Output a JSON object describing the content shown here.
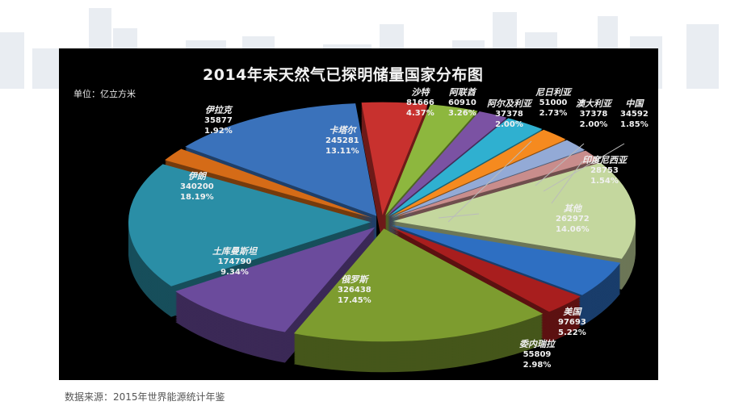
{
  "source_note": "数据来源：2015年世界能源统计年鉴",
  "chart_data": {
    "type": "pie",
    "title": "2014年末天然气已探明储量国家分布图",
    "unit": "单位：亿立方米",
    "style": "3d-exploded",
    "slices": [
      {
        "name": "沙特",
        "value": 81666,
        "percent": "4.37%",
        "color": "#c8312e"
      },
      {
        "name": "阿联酋",
        "value": 60910,
        "percent": "3.26%",
        "color": "#8db73e"
      },
      {
        "name": "阿尔及利亚",
        "value": 37378,
        "percent": "2.00%",
        "color": "#7b52a3"
      },
      {
        "name": "尼日利亚",
        "value": 51000,
        "percent": "2.73%",
        "color": "#2fb0d0"
      },
      {
        "name": "澳大利亚",
        "value": 37378,
        "percent": "2.00%",
        "color": "#f58a1f"
      },
      {
        "name": "中国",
        "value": 34592,
        "percent": "1.85%",
        "color": "#93aad6"
      },
      {
        "name": "印度尼西亚",
        "value": 28753,
        "percent": "1.54%",
        "color": "#c98d8c"
      },
      {
        "name": "其他",
        "value": 262972,
        "percent": "14.06%",
        "color": "#c4d79e"
      },
      {
        "name": "美国",
        "value": 97693,
        "percent": "5.22%",
        "color": "#2e6fc2"
      },
      {
        "name": "委内瑞拉",
        "value": 55809,
        "percent": "2.98%",
        "color": "#a81e1e"
      },
      {
        "name": "俄罗斯",
        "value": 326438,
        "percent": "17.45%",
        "color": "#7d9c2f"
      },
      {
        "name": "土库曼斯坦",
        "value": 174790,
        "percent": "9.34%",
        "color": "#6b4b9c"
      },
      {
        "name": "伊朗",
        "value": 340200,
        "percent": "18.19%",
        "color": "#2a8ea6"
      },
      {
        "name": "伊拉克",
        "value": 35877,
        "percent": "1.92%",
        "color": "#d56b17"
      },
      {
        "name": "卡塔尔",
        "value": 245281,
        "percent": "13.11%",
        "color": "#3a72bb"
      }
    ]
  }
}
